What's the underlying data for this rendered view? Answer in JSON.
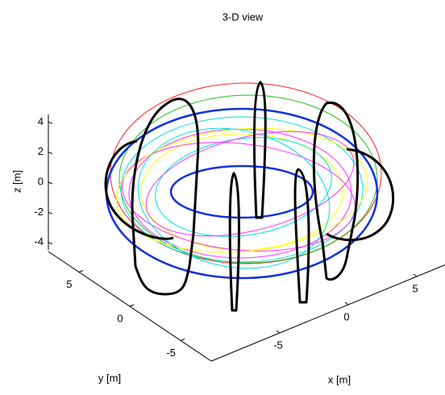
{
  "chart_data": {
    "type": "line3d",
    "title": "3-D view",
    "xlabel": "x [m]",
    "ylabel": "y [m]",
    "zlabel": "z [m]",
    "xlim": [
      -10,
      10
    ],
    "xticks": [
      -5,
      0,
      5
    ],
    "ylim": [
      -8,
      8
    ],
    "yticks": [
      -5,
      0,
      5
    ],
    "zlim": [
      -4.5,
      4.5
    ],
    "zticks": [
      -4,
      -2,
      0,
      2,
      4
    ]
  }
}
